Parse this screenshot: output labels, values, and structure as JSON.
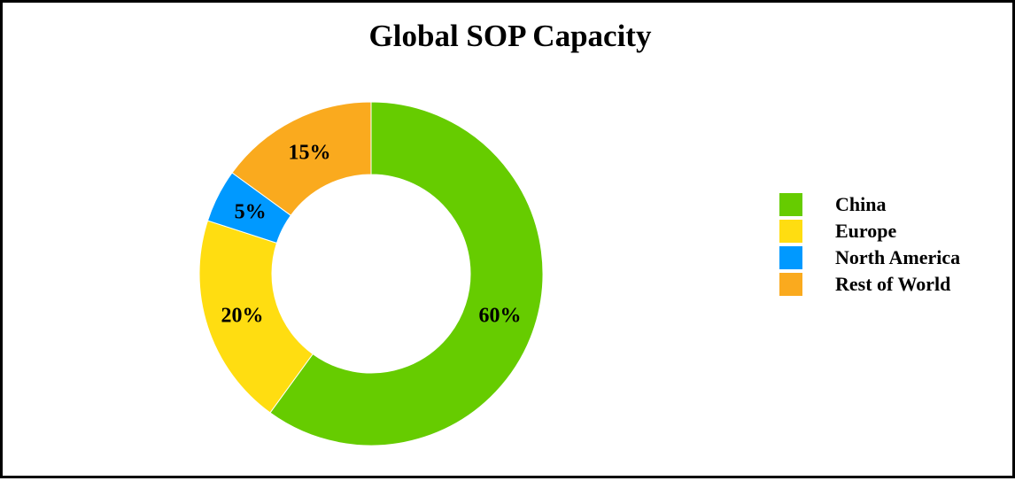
{
  "chart_data": {
    "type": "pie",
    "variant": "donut",
    "title": "Global SOP Capacity",
    "start_angle": "12 o'clock",
    "direction": "clockwise",
    "slices": [
      {
        "label": "China",
        "value": 60,
        "display": "60%",
        "color": "#66CC00"
      },
      {
        "label": "Europe",
        "value": 20,
        "display": "20%",
        "color": "#FFDD11"
      },
      {
        "label": "North America",
        "value": 5,
        "display": "5%",
        "color": "#0099FF"
      },
      {
        "label": "Rest of World",
        "value": 15,
        "display": "15%",
        "color": "#FAAA1E"
      }
    ],
    "legend": {
      "position": "right",
      "entries": [
        "China",
        "Europe",
        "North America",
        "Rest of World"
      ]
    }
  }
}
